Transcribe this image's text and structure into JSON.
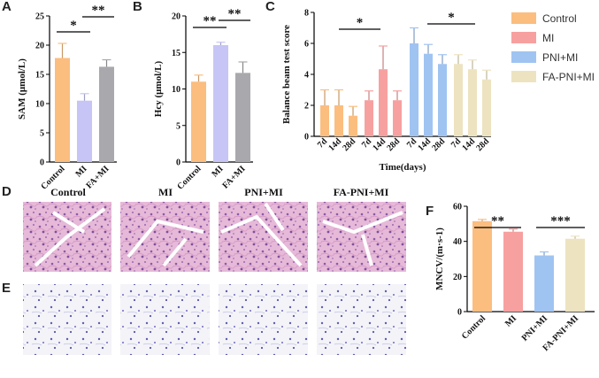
{
  "colors": {
    "control": "#fbbe7f",
    "mi": "#f7a0a0",
    "pni_mi": "#9fc4f2",
    "fa_pni_mi": "#ede3c0",
    "fa_mi": "#a9a9ad",
    "hcy_mi": "#c7c5f5"
  },
  "chart_data": [
    {
      "panel": "A",
      "type": "bar",
      "categories": [
        "Control",
        "MI",
        "FA+MI"
      ],
      "values": [
        17.8,
        10.5,
        16.3
      ],
      "errors": [
        2.5,
        1.2,
        1.2
      ],
      "ylabel": "SAM (μmol/L)",
      "ylim": [
        0,
        25
      ],
      "yticks": [
        0,
        5,
        10,
        15,
        20,
        25
      ],
      "significance": [
        {
          "from": 0,
          "to": 1,
          "label": "*"
        },
        {
          "from": 1,
          "to": 2,
          "label": "**"
        }
      ]
    },
    {
      "panel": "B",
      "type": "bar",
      "categories": [
        "Control",
        "MI",
        "FA+MI"
      ],
      "values": [
        11.0,
        16.0,
        12.2
      ],
      "errors": [
        0.9,
        0.4,
        1.5
      ],
      "ylabel": "Hcy (μmol/L)",
      "ylim": [
        0,
        20
      ],
      "yticks": [
        0,
        5,
        10,
        15,
        20
      ],
      "significance": [
        {
          "from": 0,
          "to": 1,
          "label": "**"
        },
        {
          "from": 1,
          "to": 2,
          "label": "**"
        }
      ]
    },
    {
      "panel": "C",
      "type": "bar",
      "categories": [
        "7d",
        "14d",
        "28d"
      ],
      "series": [
        {
          "name": "Control",
          "values": [
            2.0,
            2.0,
            1.33
          ],
          "errors": [
            1.0,
            1.0,
            0.6
          ]
        },
        {
          "name": "MI",
          "values": [
            2.33,
            4.33,
            2.33
          ],
          "errors": [
            0.6,
            1.5,
            0.6
          ]
        },
        {
          "name": "PNI+MI",
          "values": [
            6.0,
            5.33,
            4.67
          ],
          "errors": [
            1.0,
            0.6,
            0.6
          ]
        },
        {
          "name": "FA-PNI+MI",
          "values": [
            4.67,
            4.33,
            3.67
          ],
          "errors": [
            0.6,
            0.6,
            0.6
          ]
        }
      ],
      "ylabel": "Balance beam test score",
      "xlabel": "Time(days)",
      "ylim": [
        0,
        8
      ],
      "yticks": [
        0,
        2,
        4,
        6,
        8
      ],
      "significance": [
        {
          "from": 0,
          "to": 1,
          "label": "*"
        },
        {
          "from": 2,
          "to": 3,
          "label": "*"
        }
      ]
    },
    {
      "panel": "F",
      "type": "bar",
      "categories": [
        "Control",
        "MI",
        "PNI+MI",
        "FA-PNI+MI"
      ],
      "values": [
        51.5,
        45.5,
        32.0,
        41.5
      ],
      "errors": [
        1.0,
        1.5,
        2.0,
        1.5
      ],
      "ylabel": "MNCV/(m·s-1)",
      "ylim": [
        0,
        60
      ],
      "yticks": [
        0,
        20,
        40,
        60
      ],
      "significance": [
        {
          "from": 0,
          "to": 1,
          "label": "**"
        },
        {
          "from": 2,
          "to": 3,
          "label": "***"
        }
      ]
    }
  ],
  "legend": [
    "Control",
    "MI",
    "PNI+MI",
    "FA-PNI+MI"
  ],
  "images": {
    "labels": [
      "Control",
      "MI",
      "PNI+MI",
      "FA-PNI+MI"
    ],
    "row_d": "D",
    "row_e": "E"
  }
}
